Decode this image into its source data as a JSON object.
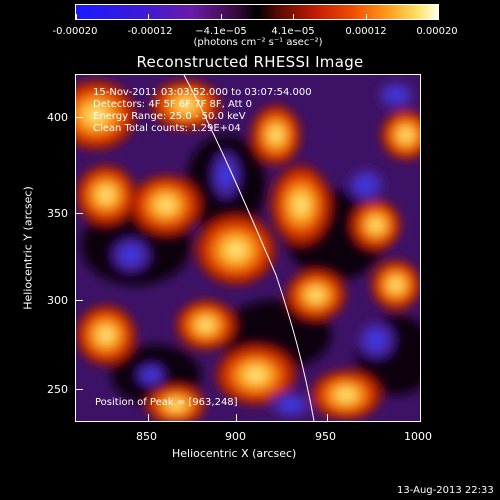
{
  "colorbar": {
    "ticks": [
      "-0.00020",
      "-0.00012",
      "−4.1e−05",
      "4.1e−05",
      "0.00012",
      "0.00020"
    ],
    "units": "(photons cm⁻² s⁻¹ asec⁻²)"
  },
  "plot": {
    "title": "Reconstructed RHESSI Image",
    "info_lines": [
      "15-Nov-2011 03:03:52.000 to 03:07:54.000",
      "Detectors: 4F 5F 6F 7F 8F, Att 0",
      "Energy Range: 25.0 - 50.0 keV",
      "Clean     Total counts: 1.29E+04"
    ],
    "peak_label": "Position of Peak = [963,248]",
    "x_axis": {
      "label": "Heliocentric X (arcsec)",
      "ticks": [
        "850",
        "900",
        "950",
        "1000"
      ]
    },
    "y_axis": {
      "label": "Heliocentric Y (arcsec)",
      "ticks": [
        "400",
        "350",
        "300",
        "250"
      ]
    }
  },
  "footer": {
    "timestamp": "13-Aug-2013 22:33"
  },
  "colors": {
    "background": "#000000",
    "text": "#ffffff",
    "limb": "#ffffff"
  }
}
